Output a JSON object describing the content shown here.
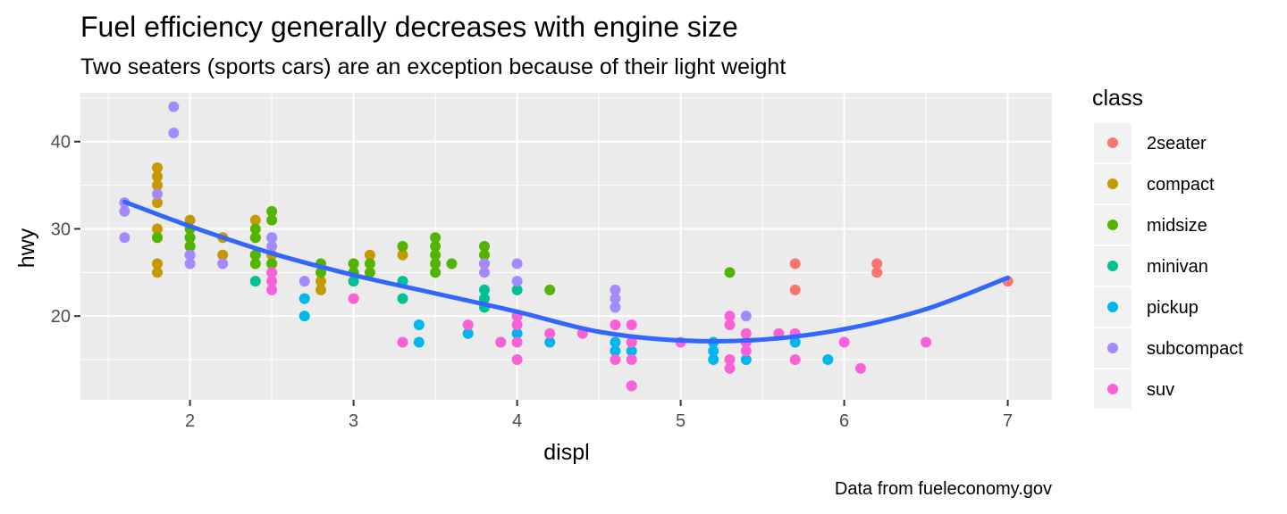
{
  "chart_data": {
    "type": "scatter",
    "title": "Fuel efficiency generally decreases with engine size",
    "subtitle": "Two seaters (sports cars) are an exception because of their light weight",
    "caption": "Data from fueleconomy.gov",
    "xlabel": "displ",
    "ylabel": "hwy",
    "xlim": [
      1.33,
      7.27
    ],
    "ylim": [
      10.4,
      45.6
    ],
    "xticks": [
      2,
      3,
      4,
      5,
      6,
      7
    ],
    "yticks": [
      20,
      30,
      40
    ],
    "grid": true,
    "legend_title": "class",
    "legend_position": "right",
    "series": [
      {
        "name": "2seater",
        "color": "#F8766D",
        "points": [
          [
            5.7,
            26
          ],
          [
            5.7,
            23
          ],
          [
            6.2,
            26
          ],
          [
            6.2,
            25
          ],
          [
            7.0,
            24
          ]
        ]
      },
      {
        "name": "compact",
        "color": "#C49A00",
        "points": [
          [
            1.8,
            37
          ],
          [
            1.8,
            36
          ],
          [
            1.8,
            35
          ],
          [
            1.8,
            33
          ],
          [
            1.8,
            30
          ],
          [
            1.8,
            29
          ],
          [
            1.8,
            26
          ],
          [
            1.8,
            25
          ],
          [
            2.0,
            31
          ],
          [
            2.0,
            29
          ],
          [
            2.0,
            28
          ],
          [
            2.2,
            29
          ],
          [
            2.2,
            27
          ],
          [
            2.4,
            31
          ],
          [
            2.4,
            29
          ],
          [
            2.4,
            27
          ],
          [
            2.5,
            27
          ],
          [
            2.5,
            26
          ],
          [
            2.5,
            25
          ],
          [
            2.8,
            24
          ],
          [
            2.8,
            23
          ],
          [
            3.0,
            26
          ],
          [
            3.1,
            27
          ],
          [
            3.3,
            27
          ]
        ]
      },
      {
        "name": "midsize",
        "color": "#53B400",
        "points": [
          [
            1.8,
            29
          ],
          [
            2.0,
            30
          ],
          [
            2.0,
            29
          ],
          [
            2.0,
            28
          ],
          [
            2.0,
            27
          ],
          [
            2.4,
            30
          ],
          [
            2.4,
            29
          ],
          [
            2.4,
            27
          ],
          [
            2.4,
            26
          ],
          [
            2.5,
            32
          ],
          [
            2.5,
            31
          ],
          [
            2.5,
            29
          ],
          [
            2.5,
            26
          ],
          [
            2.8,
            26
          ],
          [
            2.8,
            25
          ],
          [
            3.0,
            26
          ],
          [
            3.0,
            25
          ],
          [
            3.1,
            26
          ],
          [
            3.1,
            25
          ],
          [
            3.3,
            28
          ],
          [
            3.5,
            29
          ],
          [
            3.5,
            28
          ],
          [
            3.5,
            27
          ],
          [
            3.5,
            26
          ],
          [
            3.5,
            25
          ],
          [
            3.6,
            26
          ],
          [
            3.8,
            28
          ],
          [
            3.8,
            27
          ],
          [
            3.8,
            26
          ],
          [
            4.2,
            23
          ],
          [
            5.3,
            25
          ]
        ]
      },
      {
        "name": "minivan",
        "color": "#00C094",
        "points": [
          [
            2.4,
            24
          ],
          [
            3.0,
            24
          ],
          [
            3.3,
            24
          ],
          [
            3.3,
            22
          ],
          [
            3.8,
            23
          ],
          [
            3.8,
            22
          ],
          [
            3.8,
            21
          ],
          [
            4.0,
            23
          ]
        ]
      },
      {
        "name": "pickup",
        "color": "#00B6EB",
        "points": [
          [
            2.7,
            22
          ],
          [
            2.7,
            20
          ],
          [
            3.4,
            19
          ],
          [
            3.4,
            17
          ],
          [
            3.7,
            18
          ],
          [
            3.9,
            17
          ],
          [
            4.0,
            20
          ],
          [
            4.0,
            18
          ],
          [
            4.2,
            17
          ],
          [
            4.6,
            17
          ],
          [
            4.6,
            16
          ],
          [
            4.7,
            17
          ],
          [
            4.7,
            16
          ],
          [
            4.7,
            12
          ],
          [
            5.2,
            17
          ],
          [
            5.2,
            16
          ],
          [
            5.2,
            15
          ],
          [
            5.4,
            17
          ],
          [
            5.4,
            15
          ],
          [
            5.7,
            17
          ],
          [
            5.9,
            15
          ]
        ]
      },
      {
        "name": "subcompact",
        "color": "#A58AFF",
        "points": [
          [
            1.6,
            33
          ],
          [
            1.6,
            32
          ],
          [
            1.6,
            29
          ],
          [
            1.8,
            34
          ],
          [
            1.9,
            44
          ],
          [
            1.9,
            41
          ],
          [
            2.0,
            27
          ],
          [
            2.0,
            26
          ],
          [
            2.2,
            26
          ],
          [
            2.5,
            29
          ],
          [
            2.5,
            28
          ],
          [
            2.7,
            24
          ],
          [
            3.8,
            26
          ],
          [
            3.8,
            25
          ],
          [
            4.0,
            26
          ],
          [
            4.0,
            24
          ],
          [
            4.6,
            23
          ],
          [
            4.6,
            22
          ],
          [
            4.6,
            21
          ],
          [
            5.4,
            20
          ]
        ]
      },
      {
        "name": "suv",
        "color": "#FB61D7",
        "points": [
          [
            2.5,
            25
          ],
          [
            2.5,
            24
          ],
          [
            2.5,
            23
          ],
          [
            3.0,
            22
          ],
          [
            3.3,
            17
          ],
          [
            3.7,
            19
          ],
          [
            3.9,
            17
          ],
          [
            4.0,
            20
          ],
          [
            4.0,
            19
          ],
          [
            4.0,
            17
          ],
          [
            4.0,
            15
          ],
          [
            4.2,
            18
          ],
          [
            4.4,
            18
          ],
          [
            4.6,
            19
          ],
          [
            4.6,
            15
          ],
          [
            4.7,
            19
          ],
          [
            4.7,
            17
          ],
          [
            4.7,
            15
          ],
          [
            4.7,
            12
          ],
          [
            5.0,
            17
          ],
          [
            5.3,
            20
          ],
          [
            5.3,
            19
          ],
          [
            5.3,
            15
          ],
          [
            5.3,
            14
          ],
          [
            5.4,
            18
          ],
          [
            5.4,
            17
          ],
          [
            5.4,
            16
          ],
          [
            5.6,
            18
          ],
          [
            5.7,
            18
          ],
          [
            5.7,
            15
          ],
          [
            6.0,
            17
          ],
          [
            6.1,
            14
          ],
          [
            6.5,
            17
          ]
        ]
      }
    ],
    "smooth": {
      "color": "#3366FF",
      "points": [
        [
          1.6,
          33.1
        ],
        [
          2.0,
          30.3
        ],
        [
          2.5,
          27.2
        ],
        [
          3.0,
          24.7
        ],
        [
          3.5,
          22.6
        ],
        [
          4.0,
          20.5
        ],
        [
          4.5,
          18.2
        ],
        [
          5.0,
          17.2
        ],
        [
          5.5,
          17.3
        ],
        [
          6.0,
          18.5
        ],
        [
          6.5,
          20.8
        ],
        [
          7.0,
          24.4
        ]
      ]
    }
  }
}
